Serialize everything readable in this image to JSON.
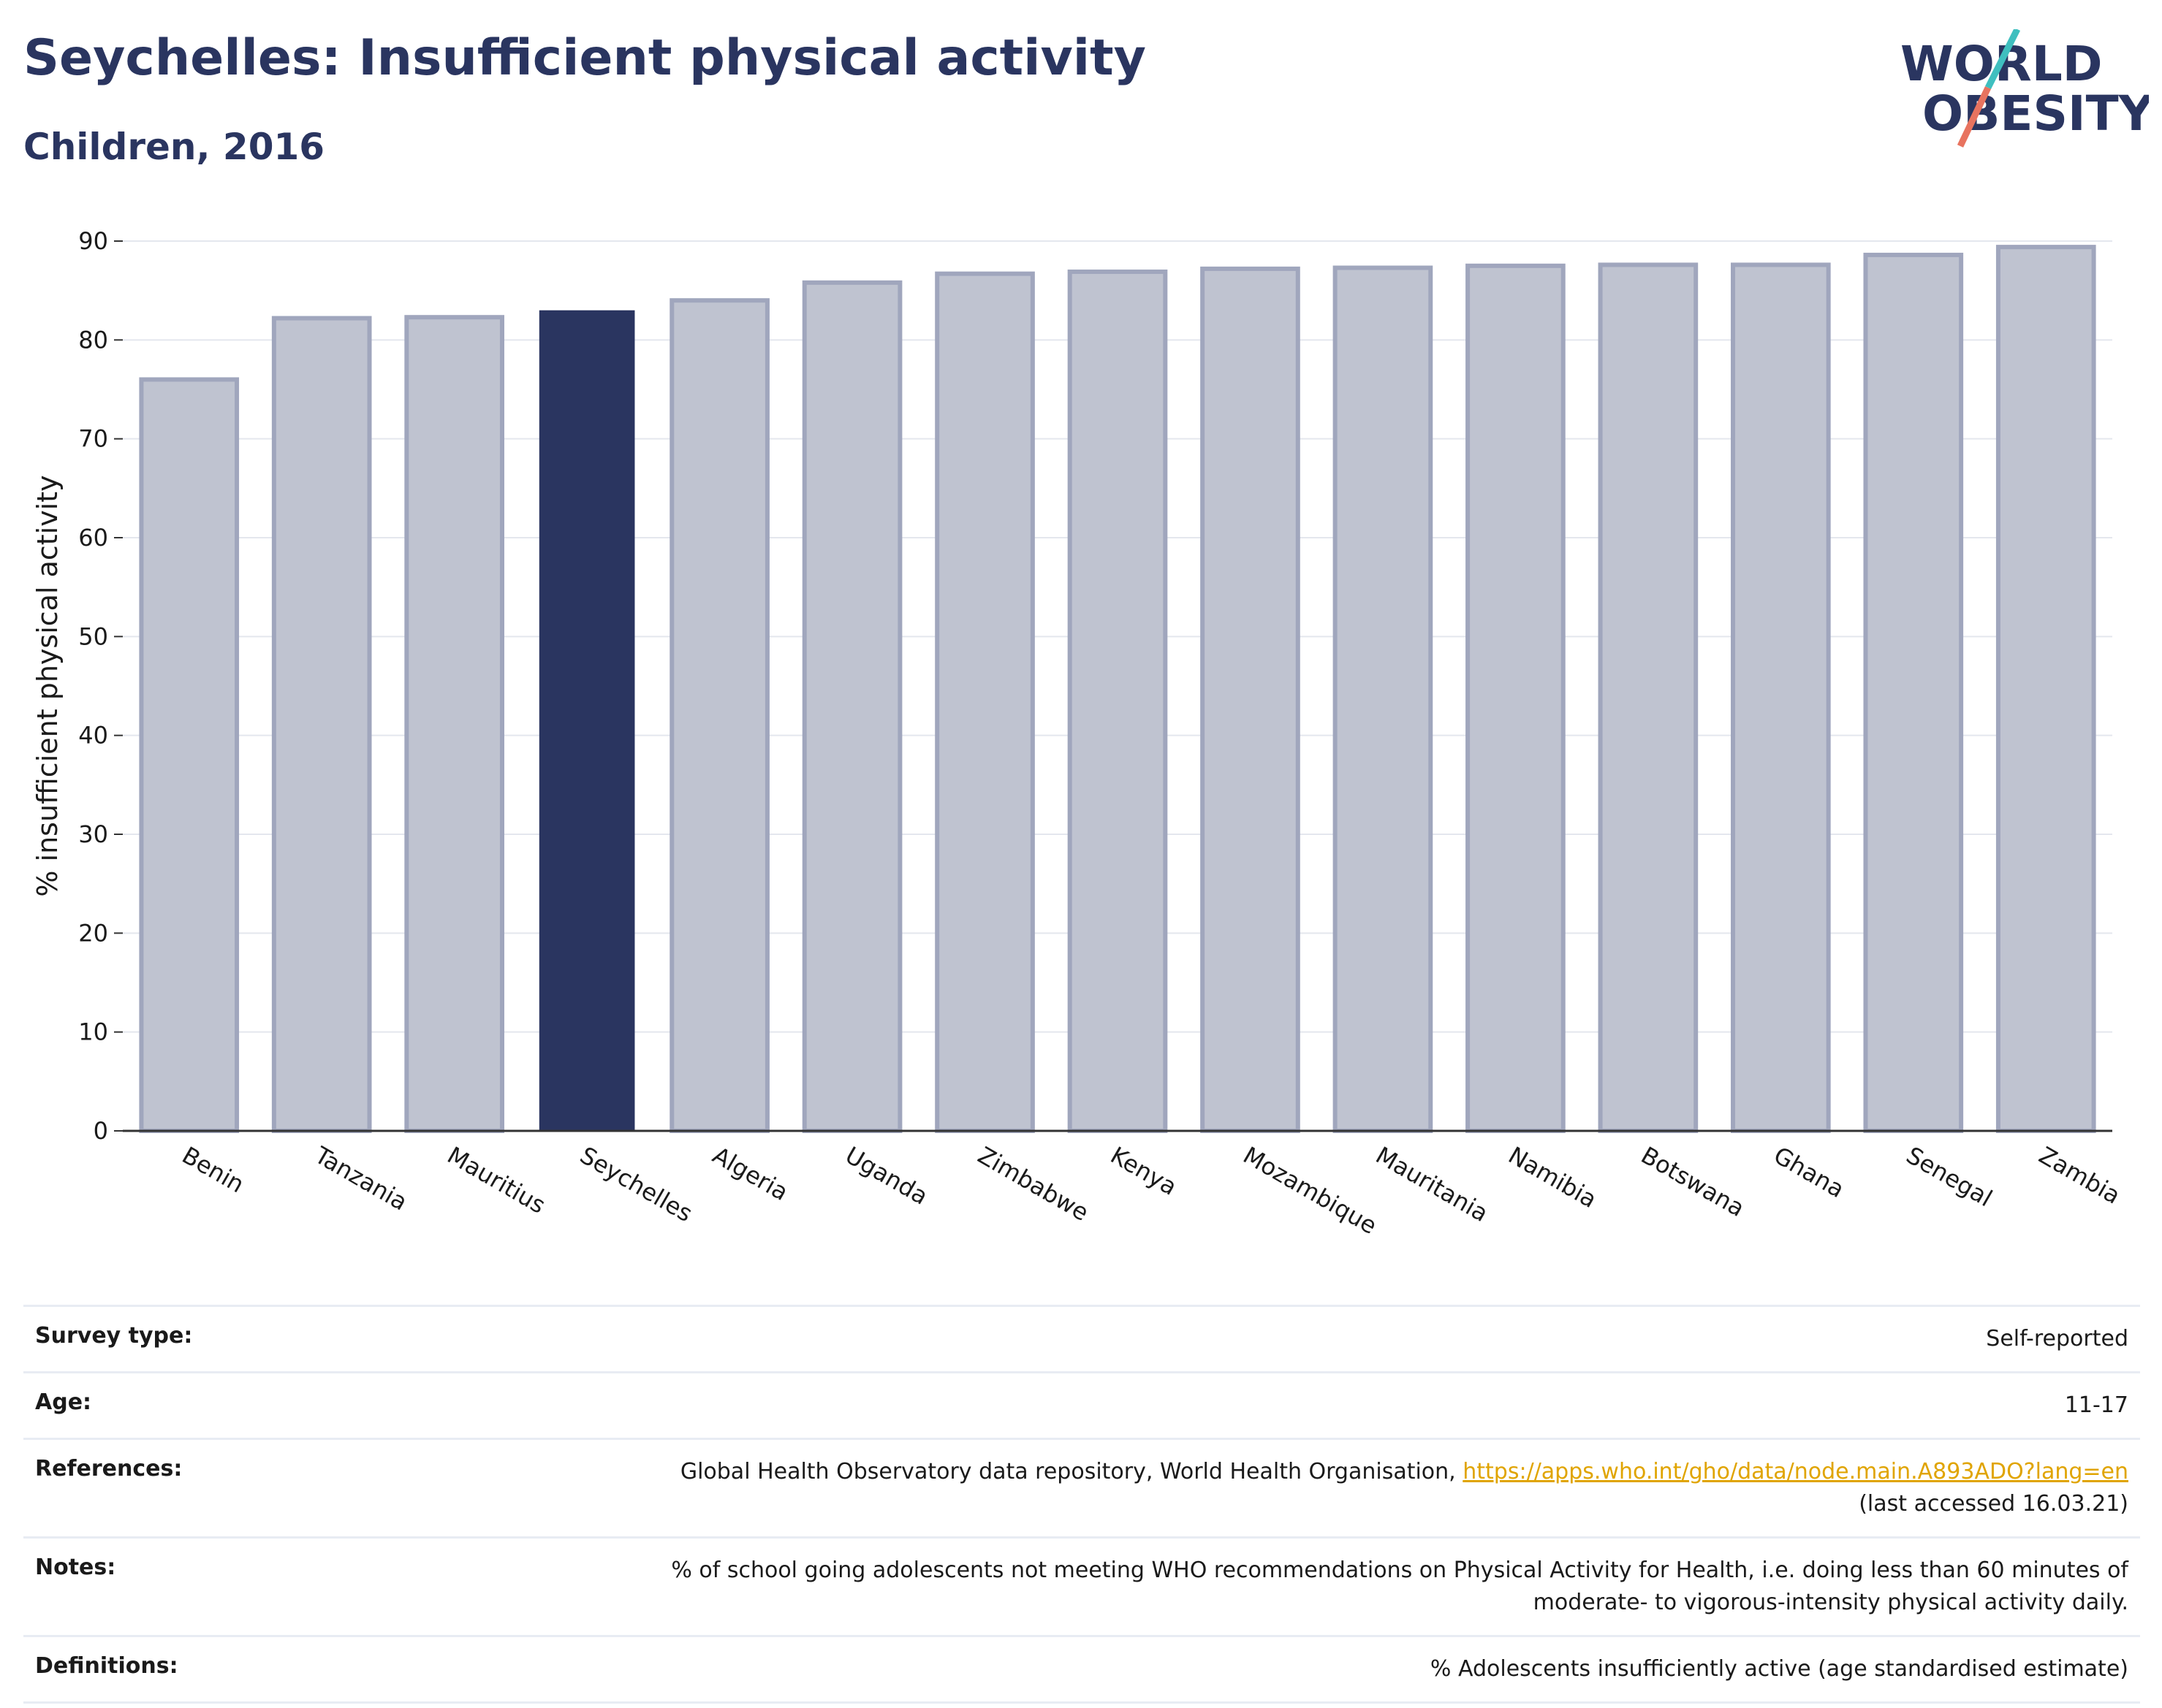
{
  "header": {
    "title": "Seychelles: Insufficient physical activity",
    "subtitle": "Children, 2016"
  },
  "logo": {
    "line1": "WORLD",
    "line2": "OBESITY",
    "accent_teal": "#3fbfbf",
    "accent_red": "#e8735f",
    "text_color": "#2a3560"
  },
  "colors": {
    "highlight": "#2a3560",
    "bar_fill": "#bfc3d0",
    "bar_stroke": "#a0a6bd",
    "grid": "#e4e7ee",
    "link": "#e0a400"
  },
  "chart_data": {
    "type": "bar",
    "categories": [
      "Benin",
      "Tanzania",
      "Mauritius",
      "Seychelles",
      "Algeria",
      "Uganda",
      "Zimbabwe",
      "Kenya",
      "Mozambique",
      "Mauritania",
      "Namibia",
      "Botswana",
      "Ghana",
      "Senegal",
      "Zambia"
    ],
    "values": [
      76,
      82.2,
      82.3,
      83,
      84,
      85.8,
      86.7,
      86.9,
      87.2,
      87.3,
      87.5,
      87.6,
      87.6,
      88.6,
      89.4
    ],
    "highlight": "Seychelles",
    "ylabel": "% insufficient physical activity",
    "ylim": [
      0,
      90
    ],
    "yticks": [
      0,
      10,
      20,
      30,
      40,
      50,
      60,
      70,
      80,
      90
    ],
    "grid": true
  },
  "info": {
    "survey_label": "Survey type:",
    "survey_value": "Self-reported",
    "age_label": "Age:",
    "age_value": "11-17",
    "references_label": "References:",
    "references_text": "Global Health Observatory data repository, World Health Organisation,",
    "references_link": "https://apps.who.int/gho/data/node.main.A893ADO?lang=en",
    "references_accessed": "(last accessed 16.03.21)",
    "notes_label": "Notes:",
    "notes_line1": "% of school going adolescents not meeting WHO recommendations on Physical Activity for Health, i.e. doing less than 60 minutes of",
    "notes_line2": "moderate- to vigorous-intensity physical activity daily.",
    "definitions_label": "Definitions:",
    "definitions_value": "% Adolescents insufficiently active (age standardised estimate)"
  }
}
